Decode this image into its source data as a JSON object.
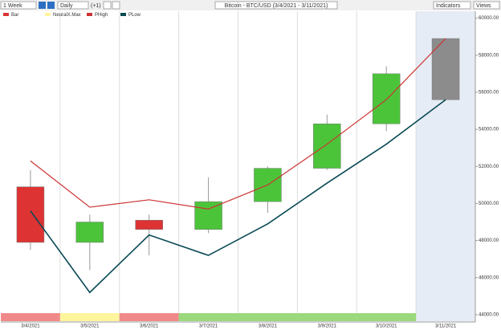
{
  "toolbar": {
    "period": "1 Week",
    "interval": "Daily",
    "offset": "(+1)",
    "indicators": "Indicators",
    "views": "Views"
  },
  "chart_data": {
    "type": "candlestick",
    "title": "Bitcoin - BTC/USD (3/4/2021 - 3/11/2021)",
    "categories": [
      "3/4/2021",
      "3/5/2021",
      "3/6/2021",
      "3/7/2021",
      "3/8/2021",
      "3/9/2021",
      "3/10/2021",
      "3/11/2021"
    ],
    "bar": {
      "name": "Bar",
      "up_color": "#4cc43a",
      "down_color": "#dd3333",
      "last_color": "#8c8c8c",
      "open": [
        50900,
        47900,
        49100,
        48600,
        50100,
        51900,
        54300,
        55600
      ],
      "high": [
        51800,
        49400,
        49400,
        51400,
        52000,
        54800,
        57400,
        58900
      ],
      "low": [
        47500,
        46400,
        47200,
        48400,
        49500,
        51800,
        53900,
        55600
      ],
      "close": [
        47900,
        49000,
        48600,
        50100,
        51900,
        54300,
        57000,
        58900
      ]
    },
    "signal": {
      "name": "NeuralX.Max",
      "colors": [
        "#f08a8a",
        "#fff59d",
        "#f08a8a",
        "#9bd97c",
        "#9bd97c",
        "#9bd97c",
        "#9bd97c",
        null
      ]
    },
    "series": [
      {
        "name": "PHigh",
        "color": "#cc3333",
        "values": [
          52300,
          49800,
          50200,
          49700,
          51000,
          53200,
          55600,
          58900
        ]
      },
      {
        "name": "PLow",
        "color": "#0a4a55",
        "values": [
          49600,
          45200,
          48300,
          47200,
          48900,
          51100,
          53200,
          55600
        ]
      }
    ],
    "ylim": [
      43650,
      60200
    ],
    "yticks": [
      {
        "value": 44000,
        "label": "44000.00"
      },
      {
        "value": 46000,
        "label": "46000.00"
      },
      {
        "value": 48000,
        "label": "48000.00"
      },
      {
        "value": 50000,
        "label": "50000.00"
      },
      {
        "value": 52000,
        "label": "52000.00"
      },
      {
        "value": 54000,
        "label": "54000.00"
      },
      {
        "value": 56000,
        "label": "56000.00"
      },
      {
        "value": 58000,
        "label": "58000.00"
      },
      {
        "value": 60000,
        "label": "60000.00"
      }
    ]
  }
}
